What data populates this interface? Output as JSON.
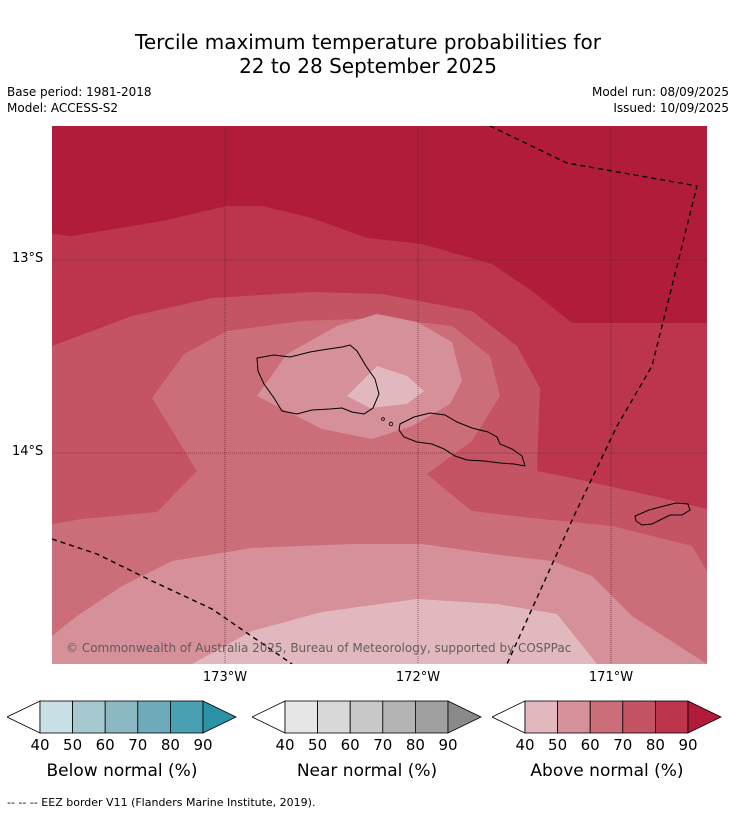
{
  "title": {
    "line1": "Tercile maximum temperature probabilities for",
    "line2": "22 to 28 September 2025"
  },
  "meta": {
    "base_period": "Base period: 1981-2018",
    "model": "Model: ACCESS-S2",
    "model_run": "Model run: 08/09/2025",
    "issued": "Issued: 10/09/2025"
  },
  "axes": {
    "lat_labels": [
      "13°S",
      "14°S"
    ],
    "lon_labels": [
      "173°W",
      "172°W",
      "171°W"
    ]
  },
  "copyright": "© Commonwealth of Australia 2025, Bureau of Meteorology, supported by COSPPac",
  "legend": {
    "ticks": [
      "40",
      "50",
      "60",
      "70",
      "80",
      "90"
    ],
    "below": {
      "label": "Below normal (%)",
      "colors": [
        "#c8e0e6",
        "#a6c9d0",
        "#8bb8c3",
        "#6dabba",
        "#48a0b2",
        "#2b93a6"
      ]
    },
    "near": {
      "label": "Near normal (%)",
      "colors": [
        "#e6e6e6",
        "#d8d8d8",
        "#c8c8c8",
        "#b4b4b4",
        "#a0a0a0",
        "#8a8a8a"
      ]
    },
    "above": {
      "label": "Above normal (%)",
      "colors": [
        "#e2b8bf",
        "#d6909a",
        "#cc6e7a",
        "#c45364",
        "#bc354c",
        "#b01c3a"
      ]
    }
  },
  "footer": "--  --  -- EEZ border V11 (Flanders Marine Institute, 2019)."
}
